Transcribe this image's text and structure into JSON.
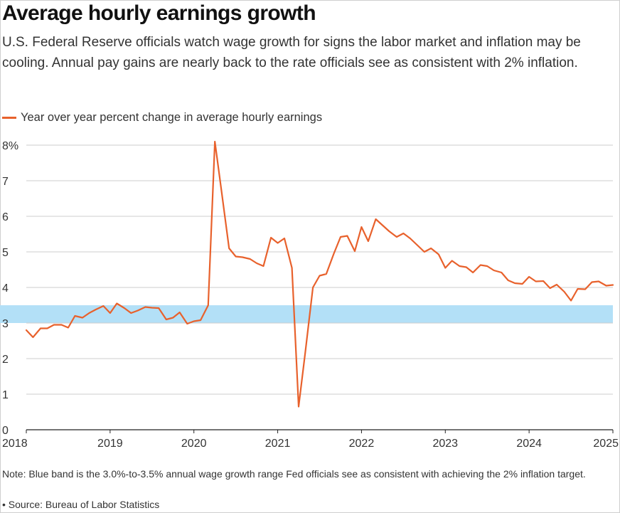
{
  "title": "Average hourly earnings growth",
  "subtitle": "U.S. Federal Reserve officials watch wage growth for signs the labor market and inflation may be cooling. Annual pay gains are nearly back to the rate officials see as consistent with 2% inflation.",
  "legend_label": "Year over year percent change in average hourly earnings",
  "note": "Note: Blue band is the 3.0%-to-3.5% annual wage growth range Fed officials see as consistent with achieving the 2% inflation target.",
  "source": "• Source: Bureau of Labor Statistics",
  "colors": {
    "line": "#e8612c",
    "band": "#b3e0f7",
    "grid": "#cccccc",
    "axis": "#222222"
  },
  "chart_data": {
    "type": "line",
    "title": "Average hourly earnings growth",
    "ylabel": "",
    "xlabel": "",
    "ylim": [
      0,
      8
    ],
    "yticks": [
      0,
      1,
      2,
      3,
      4,
      5,
      6,
      7,
      8
    ],
    "ytick_labels": [
      "0",
      "1",
      "2",
      "3",
      "4",
      "5",
      "6",
      "7",
      "8%"
    ],
    "xlim": [
      2018,
      2025
    ],
    "xticks": [
      2018,
      2019,
      2020,
      2021,
      2022,
      2023,
      2024,
      2025
    ],
    "xtick_labels": [
      "2018",
      "2019",
      "2020",
      "2021",
      "2022",
      "2023",
      "2024",
      "2025"
    ],
    "grid": true,
    "legend_position": "top-left",
    "band": {
      "y_low": 3.0,
      "y_high": 3.5
    },
    "series": [
      {
        "name": "Year over year percent change in average hourly earnings",
        "points": [
          [
            2018.0,
            2.8
          ],
          [
            2018.08,
            2.6
          ],
          [
            2018.17,
            2.85
          ],
          [
            2018.25,
            2.85
          ],
          [
            2018.33,
            2.95
          ],
          [
            2018.42,
            2.95
          ],
          [
            2018.5,
            2.87
          ],
          [
            2018.58,
            3.2
          ],
          [
            2018.67,
            3.15
          ],
          [
            2018.75,
            3.28
          ],
          [
            2018.83,
            3.38
          ],
          [
            2018.92,
            3.48
          ],
          [
            2019.0,
            3.28
          ],
          [
            2019.08,
            3.55
          ],
          [
            2019.17,
            3.42
          ],
          [
            2019.25,
            3.28
          ],
          [
            2019.33,
            3.35
          ],
          [
            2019.42,
            3.45
          ],
          [
            2019.5,
            3.43
          ],
          [
            2019.58,
            3.42
          ],
          [
            2019.67,
            3.1
          ],
          [
            2019.75,
            3.15
          ],
          [
            2019.83,
            3.3
          ],
          [
            2019.92,
            2.98
          ],
          [
            2020.0,
            3.05
          ],
          [
            2020.08,
            3.08
          ],
          [
            2020.17,
            3.5
          ],
          [
            2020.25,
            8.1
          ],
          [
            2020.33,
            6.7
          ],
          [
            2020.42,
            5.1
          ],
          [
            2020.5,
            4.87
          ],
          [
            2020.58,
            4.85
          ],
          [
            2020.67,
            4.8
          ],
          [
            2020.75,
            4.68
          ],
          [
            2020.83,
            4.6
          ],
          [
            2020.92,
            5.4
          ],
          [
            2021.0,
            5.25
          ],
          [
            2021.08,
            5.38
          ],
          [
            2021.17,
            4.55
          ],
          [
            2021.25,
            0.65
          ],
          [
            2021.33,
            2.2
          ],
          [
            2021.42,
            4.0
          ],
          [
            2021.5,
            4.33
          ],
          [
            2021.58,
            4.38
          ],
          [
            2021.67,
            4.95
          ],
          [
            2021.75,
            5.42
          ],
          [
            2021.83,
            5.45
          ],
          [
            2021.92,
            5.02
          ],
          [
            2022.0,
            5.7
          ],
          [
            2022.08,
            5.3
          ],
          [
            2022.17,
            5.92
          ],
          [
            2022.25,
            5.75
          ],
          [
            2022.33,
            5.58
          ],
          [
            2022.42,
            5.42
          ],
          [
            2022.5,
            5.52
          ],
          [
            2022.58,
            5.38
          ],
          [
            2022.67,
            5.18
          ],
          [
            2022.75,
            5.0
          ],
          [
            2022.83,
            5.1
          ],
          [
            2022.92,
            4.93
          ],
          [
            2023.0,
            4.55
          ],
          [
            2023.08,
            4.75
          ],
          [
            2023.17,
            4.6
          ],
          [
            2023.25,
            4.57
          ],
          [
            2023.33,
            4.42
          ],
          [
            2023.42,
            4.63
          ],
          [
            2023.5,
            4.6
          ],
          [
            2023.58,
            4.48
          ],
          [
            2023.67,
            4.42
          ],
          [
            2023.75,
            4.2
          ],
          [
            2023.83,
            4.12
          ],
          [
            2023.92,
            4.1
          ],
          [
            2024.0,
            4.3
          ],
          [
            2024.08,
            4.17
          ],
          [
            2024.17,
            4.18
          ],
          [
            2024.25,
            3.98
          ],
          [
            2024.33,
            4.08
          ],
          [
            2024.42,
            3.88
          ],
          [
            2024.5,
            3.63
          ],
          [
            2024.58,
            3.96
          ],
          [
            2024.67,
            3.95
          ],
          [
            2024.75,
            4.15
          ],
          [
            2024.83,
            4.17
          ],
          [
            2024.92,
            4.05
          ],
          [
            2025.0,
            4.07
          ]
        ]
      }
    ]
  }
}
